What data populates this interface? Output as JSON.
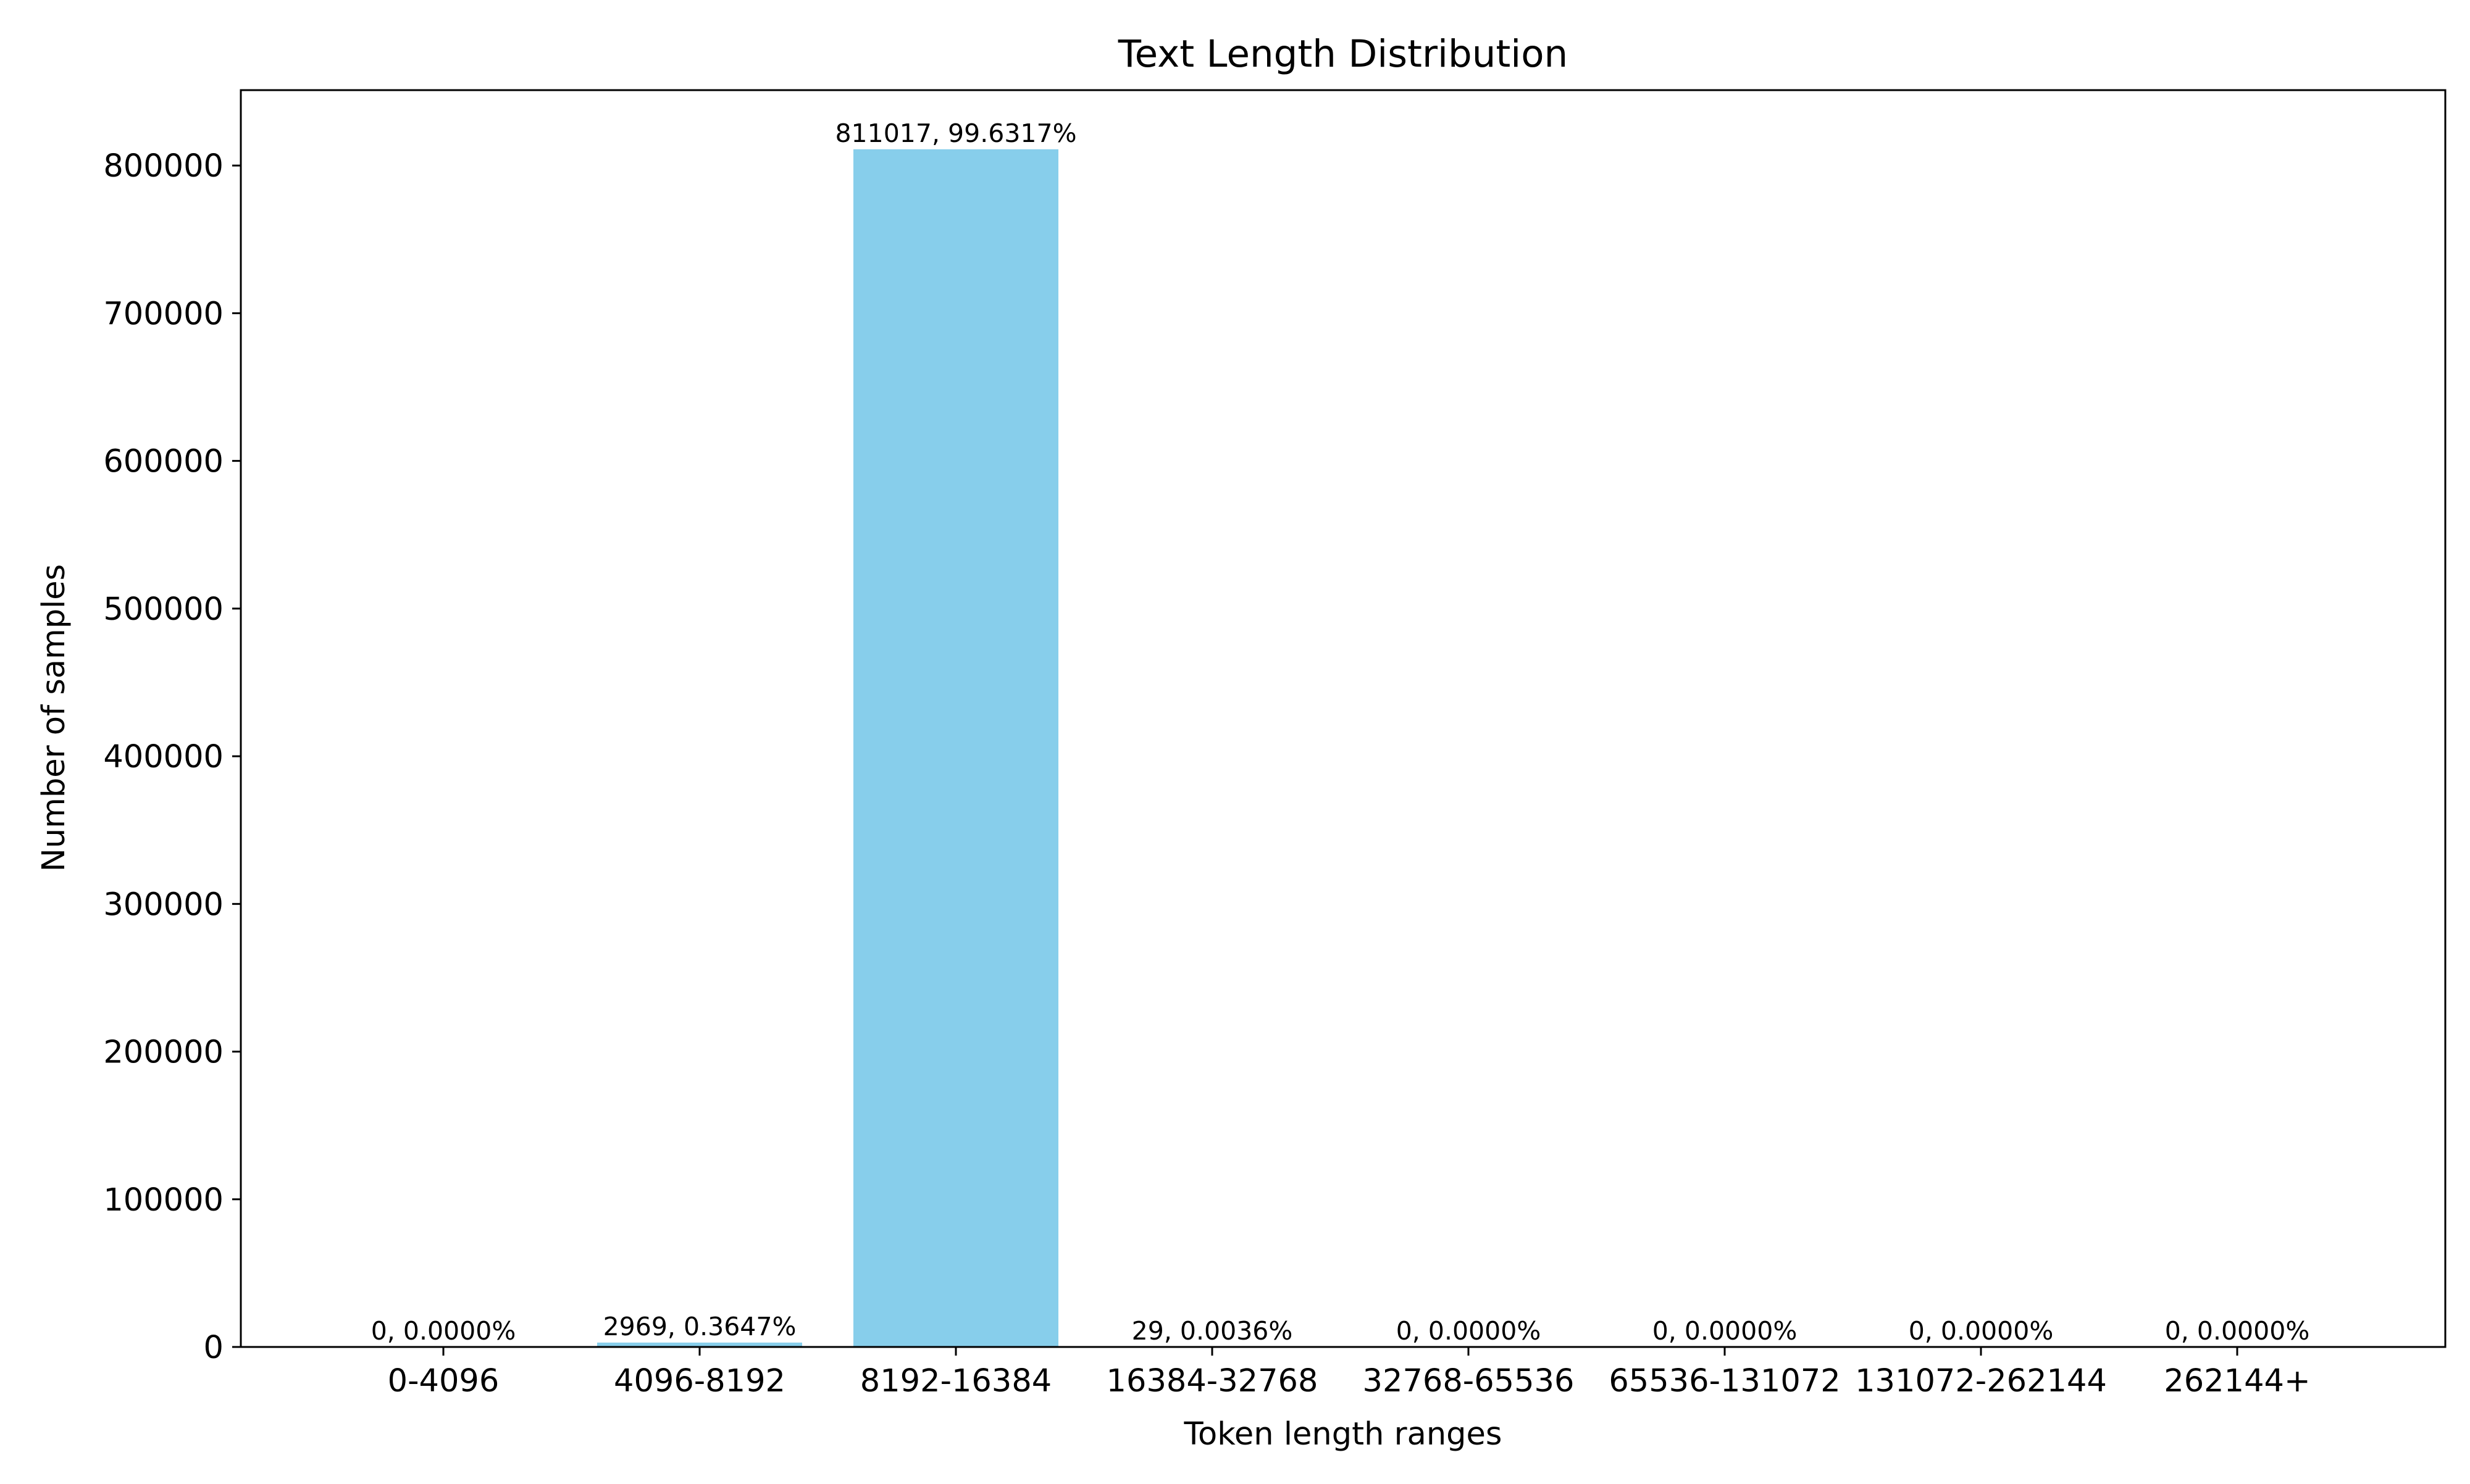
{
  "chart_data": {
    "type": "bar",
    "title": "Text Length Distribution",
    "xlabel": "Token length ranges",
    "ylabel": "Number of samples",
    "ylim": [
      0,
      851068
    ],
    "grid": false,
    "bar_color": "#87CEEB",
    "categories": [
      "0-4096",
      "4096-8192",
      "8192-16384",
      "16384-32768",
      "32768-65536",
      "65536-131072",
      "131072-262144",
      "262144+"
    ],
    "values": [
      0,
      2969,
      811017,
      29,
      0,
      0,
      0,
      0
    ],
    "data_labels": [
      "0, 0.0000%",
      "2969, 0.3647%",
      "811017, 99.6317%",
      "29, 0.0036%",
      "0, 0.0000%",
      "0, 0.0000%",
      "0, 0.0000%",
      "0, 0.0000%"
    ],
    "y_ticks": [
      0,
      100000,
      200000,
      300000,
      400000,
      500000,
      600000,
      700000,
      800000
    ],
    "y_tick_labels": [
      "0",
      "100000",
      "200000",
      "300000",
      "400000",
      "500000",
      "600000",
      "700000",
      "800000"
    ]
  }
}
